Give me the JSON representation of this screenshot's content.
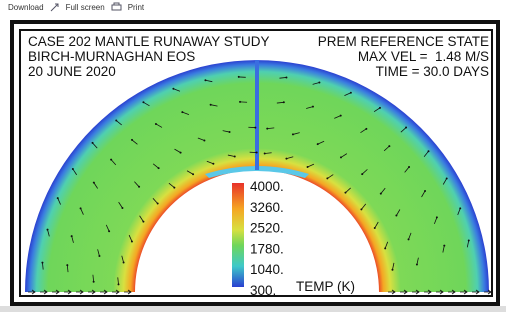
{
  "toolbar": {
    "download": "Download",
    "fullscreen": "Full screen",
    "print": "Print"
  },
  "figure": {
    "header_left": [
      "CASE 202 MANTLE RUNAWAY STUDY",
      "BIRCH-MURNAGHAN EOS",
      "20 JUNE 2020"
    ],
    "header_right": [
      "PREM REFERENCE STATE",
      "MAX VEL =  1.48 M/S",
      "TIME = 30.0 DAYS"
    ],
    "colorbar_labels": [
      "4000.",
      "3260.",
      "2520.",
      "1780.",
      "1040.",
      "300."
    ],
    "colorbar_title": "TEMP (K)"
  }
}
